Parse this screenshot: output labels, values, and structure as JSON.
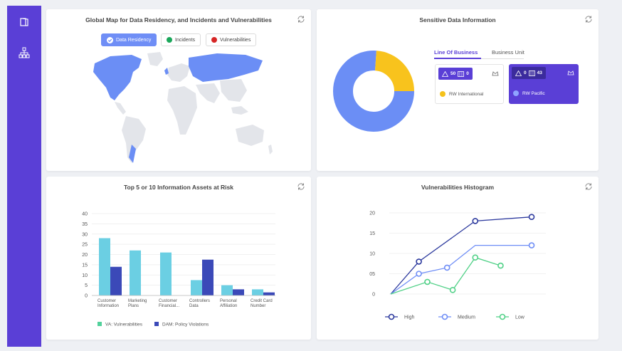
{
  "sidebar": {
    "icons": [
      "book-icon",
      "hierarchy-icon"
    ]
  },
  "map_card": {
    "title": "Global Map for Data Residency, and Incidents and Vulnerabilities",
    "filters": [
      {
        "label": "Data Residency",
        "active": true,
        "color": "#6f8ef6"
      },
      {
        "label": "Incidents",
        "active": false,
        "color": "#1aa75a"
      },
      {
        "label": "Vulnerabilities",
        "active": false,
        "color": "#d62525"
      }
    ]
  },
  "sensitive_card": {
    "title": "Sensitive Data Information",
    "tabs": [
      {
        "label": "Line Of Business",
        "active": true
      },
      {
        "label": "Business Unit",
        "active": false
      }
    ],
    "units": [
      {
        "name": "RW International",
        "alerts": "50",
        "records": "0",
        "dot_color": "#f5c21b",
        "selected": false
      },
      {
        "name": "RW Pacific",
        "alerts": "0",
        "records": "43",
        "dot_color": "#8fa4ff",
        "selected": true
      }
    ],
    "donut": {
      "slices": [
        {
          "value": 76,
          "color": "#6b8ef5"
        },
        {
          "value": 24,
          "color": "#f8c31d"
        }
      ]
    }
  },
  "assets_card": {
    "title": "Top 5 or 10 Information Assets at Risk"
  },
  "histogram_card": {
    "title": "Vulnerabilities Histogram"
  },
  "chart_data": [
    {
      "type": "bar",
      "categories": [
        "Customer Information",
        "Marketing Plans",
        "Customer Financial...",
        "Controllers Data",
        "Personal Affiliation",
        "Credit Card Number"
      ],
      "category_lines": [
        [
          "Customer",
          "Information"
        ],
        [
          "Marketing",
          "Plans"
        ],
        [
          "Customer",
          "Financial..."
        ],
        [
          "Controllers",
          "Data"
        ],
        [
          "Personal",
          "Affiliation"
        ],
        [
          "Credit Card",
          "Number"
        ]
      ],
      "series": [
        {
          "name": "VA: Vulnerabilities",
          "color": "#6bcfe3",
          "values": [
            28,
            22,
            21,
            7.5,
            5,
            3
          ]
        },
        {
          "name": "DAM: Policy Violations",
          "color": "#3b49b8",
          "values": [
            14,
            0,
            0,
            17.5,
            3,
            1.5
          ]
        }
      ],
      "yticks": [
        "0",
        "5",
        "10",
        "15",
        "20",
        "25",
        "30",
        "35",
        "40"
      ],
      "ylim": [
        0,
        40
      ],
      "legend_position": "bottom"
    },
    {
      "type": "line",
      "x": [
        0,
        1,
        2,
        3,
        4,
        5
      ],
      "series": [
        {
          "name": "High",
          "color": "#2d3a9e",
          "values": [
            0,
            8,
            null,
            18,
            null,
            19
          ],
          "markers": [
            1,
            3,
            5
          ]
        },
        {
          "name": "Medium",
          "color": "#6f8ef6",
          "values": [
            0,
            5,
            6.5,
            12,
            null,
            12
          ],
          "markers": [
            1,
            2,
            5
          ]
        },
        {
          "name": "Low",
          "color": "#52d188",
          "values": [
            0,
            3,
            1,
            9,
            7
          ],
          "x": [
            0,
            1.3,
            2.2,
            3,
            3.9
          ],
          "markers": [
            1,
            2,
            3,
            4
          ]
        }
      ],
      "yticks": [
        "0",
        "05",
        "10",
        "15",
        "20"
      ],
      "ylim": [
        0,
        20
      ],
      "legend_position": "bottom"
    }
  ]
}
